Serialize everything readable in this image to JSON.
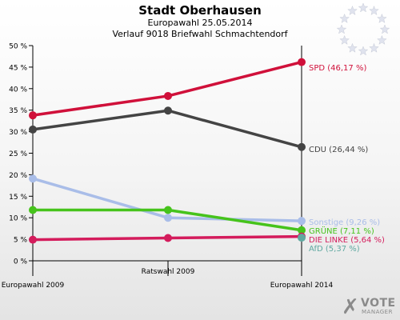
{
  "header": {
    "title": "Stadt Oberhausen",
    "subtitle": "Europawahl 25.05.2014",
    "subsubtitle": "Verlauf 9018 Briefwahl Schmachtendorf"
  },
  "logo": {
    "icon": "eu-stars-icon",
    "text": "VOTE",
    "subtext": "MANAGER"
  },
  "chart_data": {
    "type": "line",
    "title": "Stadt Oberhausen",
    "x": [
      "Europawahl 2009",
      "Ratswahl 2009",
      "Europawahl 2014"
    ],
    "ylim": [
      0,
      50
    ],
    "yticks": [
      "0 %",
      "5 %",
      "10 %",
      "15 %",
      "20 %",
      "25 %",
      "30 %",
      "35 %",
      "40 %",
      "45 %",
      "50 %"
    ],
    "grid": false,
    "legend": "right-end labels",
    "series": [
      {
        "name": "SPD",
        "label": "SPD (46,17 %)",
        "color": "#d0103a",
        "values": [
          33.8,
          38.3,
          46.17
        ]
      },
      {
        "name": "CDU",
        "label": "CDU (26,44 %)",
        "color": "#444444",
        "values": [
          30.5,
          34.9,
          26.44
        ]
      },
      {
        "name": "Sonstige",
        "label": "Sonstige (9,26 %)",
        "color": "#a9bde8",
        "values": [
          19.1,
          10.0,
          9.26
        ]
      },
      {
        "name": "GRÜNE",
        "label": "GRÜNE (7,11 %)",
        "color": "#46c31c",
        "values": [
          11.8,
          11.8,
          7.11
        ]
      },
      {
        "name": "DIE LINKE",
        "label": "DIE LINKE (5,64 %)",
        "color": "#d41c5c",
        "values": [
          4.9,
          5.3,
          5.64
        ]
      },
      {
        "name": "AfD",
        "label": "AfD (5,37 %)",
        "color": "#5fa8a0",
        "values": [
          null,
          null,
          5.37
        ]
      }
    ]
  }
}
